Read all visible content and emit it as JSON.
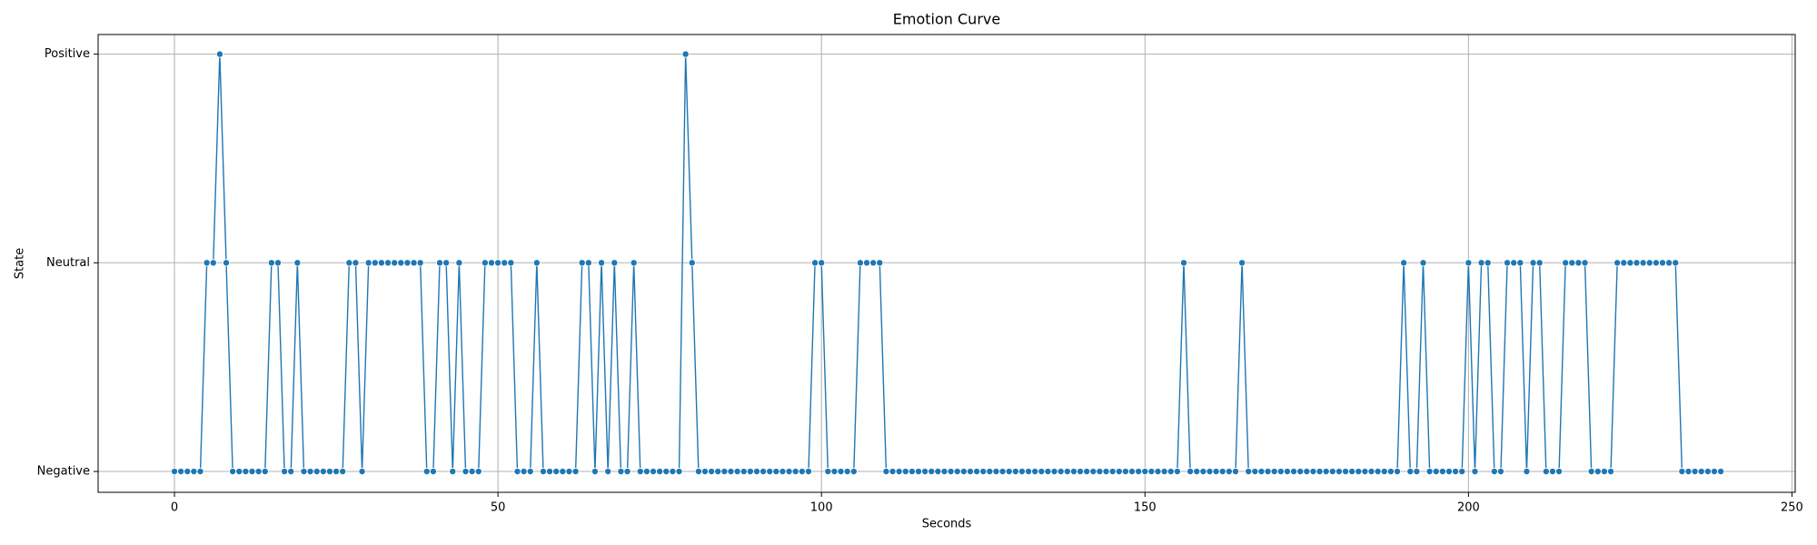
{
  "chart_data": {
    "type": "line",
    "title": "Emotion Curve",
    "xlabel": "Seconds",
    "ylabel": "State",
    "x": [
      0,
      1,
      2,
      3,
      4,
      5,
      6,
      7,
      8,
      9,
      10,
      11,
      12,
      13,
      14,
      15,
      16,
      17,
      18,
      19,
      20,
      21,
      22,
      23,
      24,
      25,
      26,
      27,
      28,
      29,
      30,
      31,
      32,
      33,
      34,
      35,
      36,
      37,
      38,
      39,
      40,
      41,
      42,
      43,
      44,
      45,
      46,
      47,
      48,
      49,
      50,
      51,
      52,
      53,
      54,
      55,
      56,
      57,
      58,
      59,
      60,
      61,
      62,
      63,
      64,
      65,
      66,
      67,
      68,
      69,
      70,
      71,
      72,
      73,
      74,
      75,
      76,
      77,
      78,
      79,
      80,
      81,
      82,
      83,
      84,
      85,
      86,
      87,
      88,
      89,
      90,
      91,
      92,
      93,
      94,
      95,
      96,
      97,
      98,
      99,
      100,
      101,
      102,
      103,
      104,
      105,
      106,
      107,
      108,
      109,
      110,
      111,
      112,
      113,
      114,
      115,
      116,
      117,
      118,
      119,
      120,
      121,
      122,
      123,
      124,
      125,
      126,
      127,
      128,
      129,
      130,
      131,
      132,
      133,
      134,
      135,
      136,
      137,
      138,
      139,
      140,
      141,
      142,
      143,
      144,
      145,
      146,
      147,
      148,
      149,
      150,
      151,
      152,
      153,
      154,
      155,
      156,
      157,
      158,
      159,
      160,
      161,
      162,
      163,
      164,
      165,
      166,
      167,
      168,
      169,
      170,
      171,
      172,
      173,
      174,
      175,
      176,
      177,
      178,
      179,
      180,
      181,
      182,
      183,
      184,
      185,
      186,
      187,
      188,
      189,
      190,
      191,
      192,
      193,
      194,
      195,
      196,
      197,
      198,
      199,
      200,
      201,
      202,
      203,
      204,
      205,
      206,
      207,
      208,
      209,
      210,
      211,
      212,
      213,
      214,
      215,
      216,
      217,
      218,
      219,
      220,
      221,
      222,
      223,
      224,
      225,
      226,
      227,
      228,
      229,
      230,
      231,
      232,
      233,
      234,
      235,
      236,
      237,
      238,
      239
    ],
    "values": [
      0,
      0,
      0,
      0,
      0,
      1,
      1,
      2,
      1,
      0,
      0,
      0,
      0,
      0,
      0,
      1,
      1,
      0,
      0,
      1,
      0,
      0,
      0,
      0,
      0,
      0,
      0,
      1,
      1,
      0,
      1,
      1,
      1,
      1,
      1,
      1,
      1,
      1,
      1,
      0,
      0,
      1,
      1,
      0,
      1,
      0,
      0,
      0,
      1,
      1,
      1,
      1,
      1,
      0,
      0,
      0,
      1,
      0,
      0,
      0,
      0,
      0,
      0,
      1,
      1,
      0,
      1,
      0,
      1,
      0,
      0,
      1,
      0,
      0,
      0,
      0,
      0,
      0,
      0,
      2,
      1,
      0,
      0,
      0,
      0,
      0,
      0,
      0,
      0,
      0,
      0,
      0,
      0,
      0,
      0,
      0,
      0,
      0,
      0,
      1,
      1,
      0,
      0,
      0,
      0,
      0,
      1,
      1,
      1,
      1,
      0,
      0,
      0,
      0,
      0,
      0,
      0,
      0,
      0,
      0,
      0,
      0,
      0,
      0,
      0,
      0,
      0,
      0,
      0,
      0,
      0,
      0,
      0,
      0,
      0,
      0,
      0,
      0,
      0,
      0,
      0,
      0,
      0,
      0,
      0,
      0,
      0,
      0,
      0,
      0,
      0,
      0,
      0,
      0,
      0,
      0,
      1,
      0,
      0,
      0,
      0,
      0,
      0,
      0,
      0,
      1,
      0,
      0,
      0,
      0,
      0,
      0,
      0,
      0,
      0,
      0,
      0,
      0,
      0,
      0,
      0,
      0,
      0,
      0,
      0,
      0,
      0,
      0,
      0,
      0,
      1,
      0,
      0,
      1,
      0,
      0,
      0,
      0,
      0,
      0,
      1,
      0,
      1,
      1,
      0,
      0,
      1,
      1,
      1,
      0,
      1,
      1,
      0,
      0,
      0,
      1,
      1,
      1,
      1,
      0,
      0,
      0,
      0,
      1,
      1,
      1,
      1,
      1,
      1,
      1,
      1,
      1,
      1,
      0,
      0,
      0,
      0,
      0,
      0,
      0
    ],
    "color": "#1f77b4",
    "xlim": [
      -11.8,
      250.5
    ],
    "xticks": [
      0,
      50,
      100,
      150,
      200,
      250
    ],
    "ylim": [
      -0.1,
      2.094
    ],
    "yticks": [
      {
        "value": 0,
        "label": "Negative"
      },
      {
        "value": 1,
        "label": "Neutral"
      },
      {
        "value": 2,
        "label": "Positive"
      }
    ],
    "grid": true
  }
}
